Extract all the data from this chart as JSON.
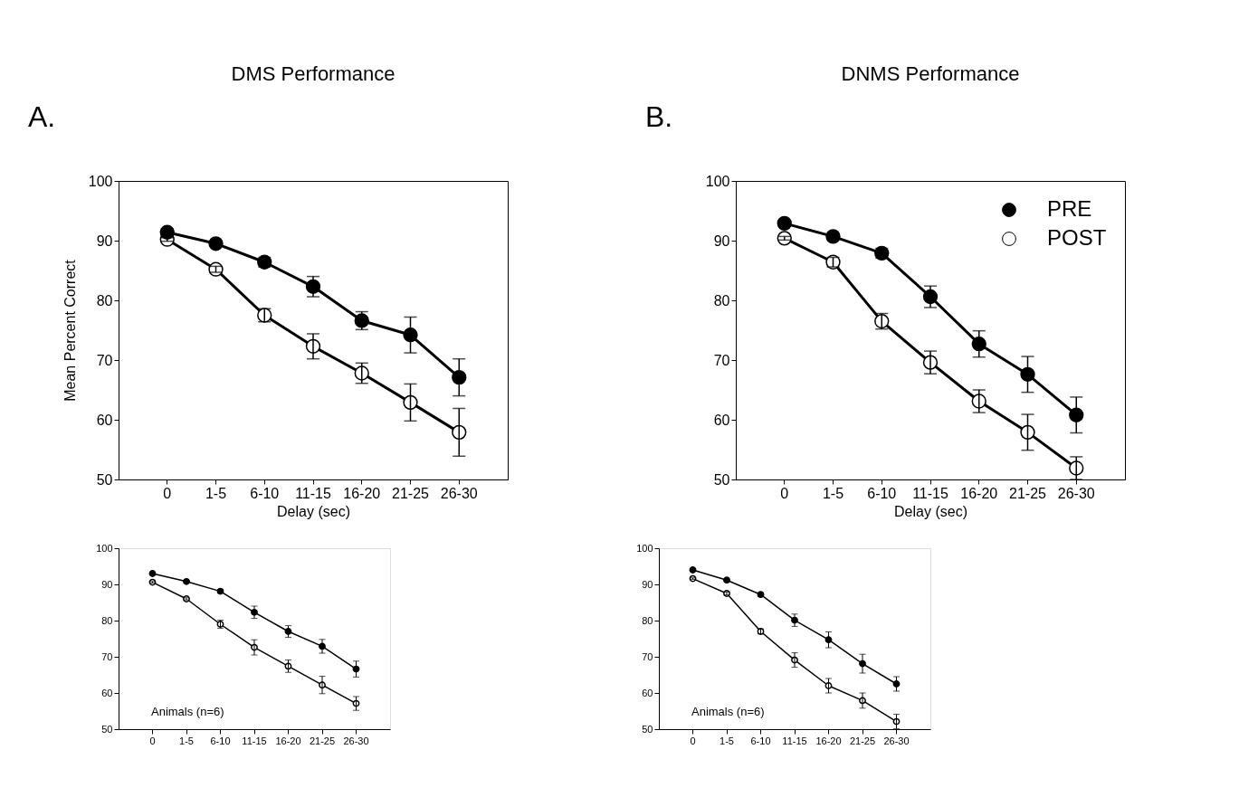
{
  "chart_data": [
    {
      "type": "line",
      "title": "DMS Performance",
      "xlabel": "Delay (sec)",
      "ylabel": "Mean Percent Correct",
      "annotations": [
        "A."
      ],
      "categories": [
        "0",
        "1-5",
        "6-10",
        "11-15",
        "16-20",
        "21-25",
        "26-30"
      ],
      "ylim": [
        50,
        100
      ],
      "yticks": [
        50,
        60,
        70,
        80,
        90,
        100
      ],
      "marker": "circle",
      "grid": false,
      "legend": false,
      "series": [
        {
          "color": "#000000",
          "values": [
            91.4,
            89.5,
            86.4,
            82.3,
            76.6,
            74.2,
            67.1
          ],
          "errors": [
            0.6,
            0.4,
            0.8,
            1.7,
            1.5,
            3.0,
            3.1
          ]
        },
        {
          "color": "#ffffff",
          "values": [
            90.2,
            85.2,
            77.5,
            72.3,
            67.8,
            62.9,
            57.9
          ],
          "errors": [
            0.3,
            0.5,
            1.1,
            2.1,
            1.7,
            3.1,
            4.0
          ]
        }
      ]
    },
    {
      "type": "line",
      "title": "DNMS Performance",
      "xlabel": "Delay (sec)",
      "annotations": [
        "B."
      ],
      "categories": [
        "0",
        "1-5",
        "6-10",
        "11-15",
        "16-20",
        "21-25",
        "26-30"
      ],
      "ylim": [
        50,
        100
      ],
      "yticks": [
        50,
        60,
        70,
        80,
        90,
        100
      ],
      "marker": "circle",
      "grid": false,
      "legend": "top right",
      "series": [
        {
          "name": "PRE",
          "color": "#000000",
          "values": [
            92.9,
            90.7,
            87.9,
            80.6,
            72.7,
            67.6,
            60.8
          ],
          "errors": [
            0.5,
            0.4,
            0.8,
            1.8,
            2.2,
            3.0,
            3.0
          ]
        },
        {
          "name": "POST",
          "color": "#ffffff",
          "values": [
            90.4,
            86.4,
            76.5,
            69.6,
            63.1,
            57.9,
            51.9
          ],
          "errors": [
            0.3,
            0.8,
            1.3,
            1.9,
            1.9,
            3.0,
            1.9
          ]
        }
      ]
    },
    {
      "type": "line",
      "annotations": [
        "Animals (n=6)"
      ],
      "categories": [
        "0",
        "1-5",
        "6-10",
        "11-15",
        "16-20",
        "21-25",
        "26-30"
      ],
      "ylim": [
        50,
        100
      ],
      "yticks": [
        50,
        60,
        70,
        80,
        90,
        100
      ],
      "marker": "circle",
      "grid": false,
      "legend": false,
      "series": [
        {
          "color": "#000000",
          "values": [
            93.0,
            90.8,
            88.1,
            82.3,
            77.0,
            72.9,
            66.6
          ],
          "errors": [
            0.3,
            0.3,
            0.5,
            1.7,
            1.6,
            1.9,
            2.2
          ]
        },
        {
          "color": "#ffffff",
          "values": [
            90.6,
            86.0,
            79.0,
            72.6,
            67.4,
            62.2,
            57.1
          ],
          "errors": [
            0.2,
            0.3,
            1.1,
            2.1,
            1.7,
            2.4,
            1.9
          ]
        }
      ]
    },
    {
      "type": "line",
      "annotations": [
        "Animals (n=6)"
      ],
      "categories": [
        "0",
        "1-5",
        "6-10",
        "11-15",
        "16-20",
        "21-25",
        "26-30"
      ],
      "ylim": [
        50,
        100
      ],
      "yticks": [
        50,
        60,
        70,
        80,
        90,
        100
      ],
      "marker": "circle",
      "grid": false,
      "legend": false,
      "series": [
        {
          "color": "#000000",
          "values": [
            94.0,
            91.2,
            87.2,
            80.1,
            74.7,
            68.1,
            62.5
          ],
          "errors": [
            0.2,
            0.2,
            0.5,
            1.7,
            2.2,
            2.6,
            2.0
          ]
        },
        {
          "color": "#ffffff",
          "values": [
            91.6,
            87.5,
            77.0,
            69.1,
            62.0,
            57.9,
            52.1
          ],
          "errors": [
            0.2,
            0.4,
            0.7,
            2.0,
            2.0,
            2.1,
            2.0
          ]
        }
      ]
    }
  ]
}
